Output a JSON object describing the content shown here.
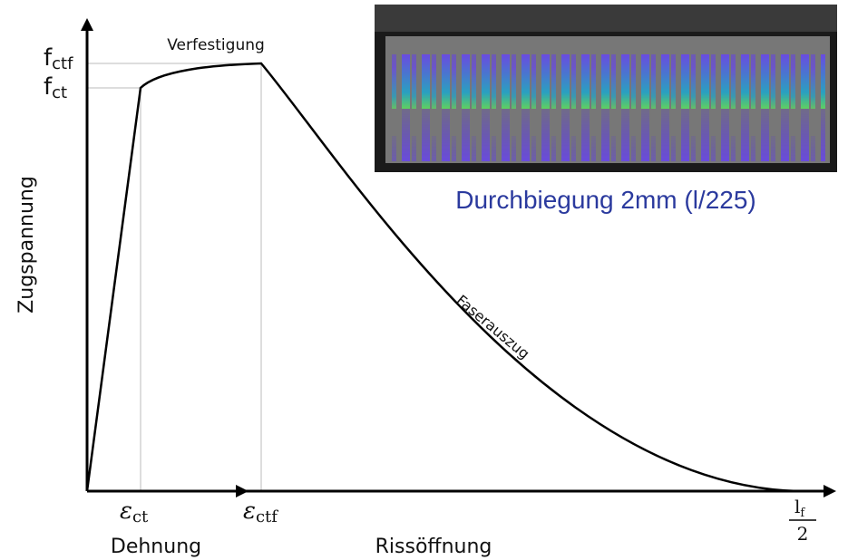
{
  "diagram": {
    "y_axis_label": "Zugspannung",
    "f_ctf": {
      "base": "f",
      "sub": "ctf"
    },
    "f_ct": {
      "base": "f",
      "sub": "ct"
    },
    "hardening_label": "Verfestigung",
    "pullout_label": "Faserauszug",
    "eps_ct": {
      "base": "ε",
      "sub": "ct"
    },
    "eps_ctf": {
      "base": "ε",
      "sub": "ctf"
    },
    "strain_label": "Dehnung",
    "crack_label": "Rissöffnung",
    "lf_half": {
      "base": "l",
      "sub": "f",
      "denominator": "2"
    },
    "photo_caption": "Durchbiegung 2mm (l/225)"
  }
}
